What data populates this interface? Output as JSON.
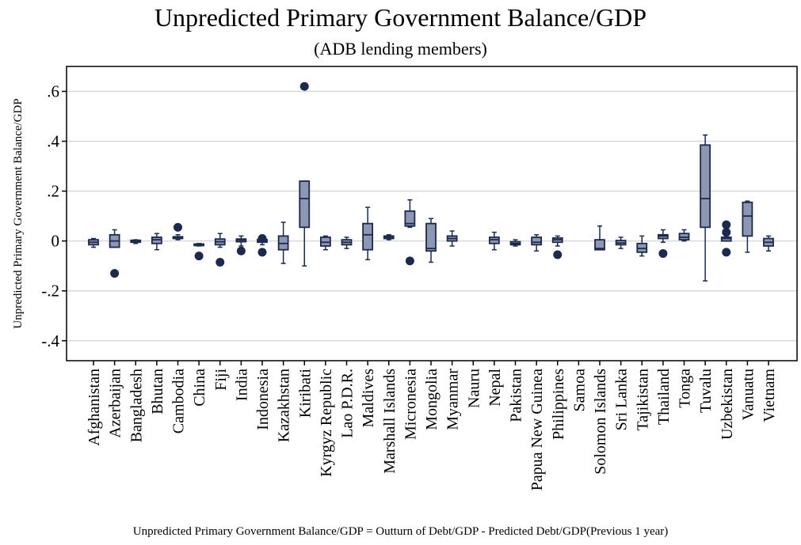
{
  "chart_data": {
    "type": "box",
    "title": "Unpredicted Primary Government Balance/GDP",
    "subtitle": "(ADB lending members)",
    "ylabel": "Unpredicted Primary Government Balance/GDP",
    "xlabel": "",
    "note": "Unpredicted Primary Government Balance/GDP = Outturn of Debt/GDP - Predicted Debt/GDP(Previous 1 year)",
    "ylim": [
      -0.48,
      0.7
    ],
    "yticks": [
      {
        "value": 0.6,
        "label": ".6"
      },
      {
        "value": 0.4,
        "label": ".4"
      },
      {
        "value": 0.2,
        "label": ".2"
      },
      {
        "value": 0,
        "label": "0"
      },
      {
        "value": -0.2,
        "label": "-.2"
      },
      {
        "value": -0.4,
        "label": "-.4"
      }
    ],
    "grid": true,
    "colors": {
      "box_fill": "#8d96b3",
      "box_stroke": "#1c2a4d",
      "outlier": "#1c2a4d",
      "grid": "#d9d9d9"
    },
    "series": [
      {
        "name": "Afghanistan",
        "box": [
          -0.025,
          -0.015,
          -0.005,
          0.005,
          0.01
        ],
        "outliers": []
      },
      {
        "name": "Azerbaijan",
        "box": [
          -0.025,
          -0.025,
          0.0,
          0.025,
          0.045
        ],
        "outliers": [
          -0.13
        ]
      },
      {
        "name": "Bangladesh",
        "box": [
          -0.01,
          -0.005,
          0.0,
          0.003,
          0.005
        ],
        "outliers": []
      },
      {
        "name": "Bhutan",
        "box": [
          -0.035,
          -0.01,
          0.005,
          0.015,
          0.03
        ],
        "outliers": []
      },
      {
        "name": "Cambodia",
        "box": [
          0.005,
          0.01,
          0.013,
          0.017,
          0.025
        ],
        "outliers": [
          0.055
        ]
      },
      {
        "name": "China",
        "box": [
          -0.02,
          -0.016,
          -0.014,
          -0.012,
          -0.01
        ],
        "outliers": [
          -0.06
        ]
      },
      {
        "name": "Fiji",
        "box": [
          -0.025,
          -0.015,
          -0.003,
          0.008,
          0.03
        ],
        "outliers": [
          -0.085
        ]
      },
      {
        "name": "India",
        "box": [
          -0.02,
          -0.003,
          0.003,
          0.008,
          0.02
        ],
        "outliers": [
          -0.04
        ]
      },
      {
        "name": "Indonesia",
        "box": [
          -0.015,
          -0.005,
          0.001,
          0.006,
          0.015
        ],
        "outliers": [
          -0.045,
          0.01
        ]
      },
      {
        "name": "Kazakhstan",
        "box": [
          -0.09,
          -0.035,
          -0.01,
          0.02,
          0.075
        ],
        "outliers": []
      },
      {
        "name": "Kiribati",
        "box": [
          -0.1,
          0.055,
          0.17,
          0.24,
          0.24
        ],
        "outliers": [
          0.62
        ]
      },
      {
        "name": "Kyrgyz Republic",
        "box": [
          -0.035,
          -0.02,
          -0.005,
          0.015,
          0.02
        ],
        "outliers": []
      },
      {
        "name": "Lao P.D.R.",
        "box": [
          -0.03,
          -0.015,
          -0.005,
          0.005,
          0.015
        ],
        "outliers": []
      },
      {
        "name": "Maldives",
        "box": [
          -0.075,
          -0.035,
          0.025,
          0.07,
          0.135
        ],
        "outliers": []
      },
      {
        "name": "Marshall Islands",
        "box": [
          0.005,
          0.01,
          0.015,
          0.02,
          0.025
        ],
        "outliers": []
      },
      {
        "name": "Micronesia",
        "box": [
          0.055,
          0.06,
          0.07,
          0.12,
          0.165
        ],
        "outliers": [
          -0.08
        ]
      },
      {
        "name": "Mongolia",
        "box": [
          -0.085,
          -0.04,
          -0.03,
          0.07,
          0.09
        ],
        "outliers": []
      },
      {
        "name": "Myanmar",
        "box": [
          -0.02,
          0.0,
          0.01,
          0.02,
          0.04
        ],
        "outliers": []
      },
      {
        "name": "Nauru",
        "box": null,
        "outliers": []
      },
      {
        "name": "Nepal",
        "box": [
          -0.035,
          -0.01,
          0.005,
          0.015,
          0.035
        ],
        "outliers": []
      },
      {
        "name": "Pakistan",
        "box": [
          -0.02,
          -0.015,
          -0.01,
          -0.003,
          0.005
        ],
        "outliers": []
      },
      {
        "name": "Papua New Guinea",
        "box": [
          -0.04,
          -0.015,
          -0.005,
          0.015,
          0.025
        ],
        "outliers": []
      },
      {
        "name": "Philippines",
        "box": [
          -0.02,
          -0.005,
          0.005,
          0.012,
          0.02
        ],
        "outliers": [
          -0.055
        ]
      },
      {
        "name": "Samoa",
        "box": null,
        "outliers": []
      },
      {
        "name": "Solomon Islands",
        "box": [
          -0.035,
          -0.035,
          -0.03,
          0.005,
          0.06
        ],
        "outliers": []
      },
      {
        "name": "Sri Lanka",
        "box": [
          -0.03,
          -0.015,
          -0.008,
          0.002,
          0.015
        ],
        "outliers": []
      },
      {
        "name": "Tajikistan",
        "box": [
          -0.06,
          -0.045,
          -0.03,
          -0.01,
          0.02
        ],
        "outliers": []
      },
      {
        "name": "Thailand",
        "box": [
          -0.005,
          0.01,
          0.02,
          0.025,
          0.045
        ],
        "outliers": [
          -0.05
        ]
      },
      {
        "name": "Tonga",
        "box": [
          0.0,
          0.005,
          0.015,
          0.03,
          0.045
        ],
        "outliers": []
      },
      {
        "name": "Tuvalu",
        "box": [
          -0.16,
          0.055,
          0.17,
          0.385,
          0.425
        ],
        "outliers": []
      },
      {
        "name": "Uzbekistan",
        "box": [
          0.0,
          0.0,
          0.01,
          0.015,
          0.02
        ],
        "outliers": [
          0.065,
          0.035,
          -0.045
        ]
      },
      {
        "name": "Vanuatu",
        "box": [
          -0.045,
          0.02,
          0.1,
          0.155,
          0.16
        ],
        "outliers": []
      },
      {
        "name": "Vietnam",
        "box": [
          -0.04,
          -0.02,
          -0.005,
          0.01,
          0.02
        ],
        "outliers": []
      }
    ]
  }
}
